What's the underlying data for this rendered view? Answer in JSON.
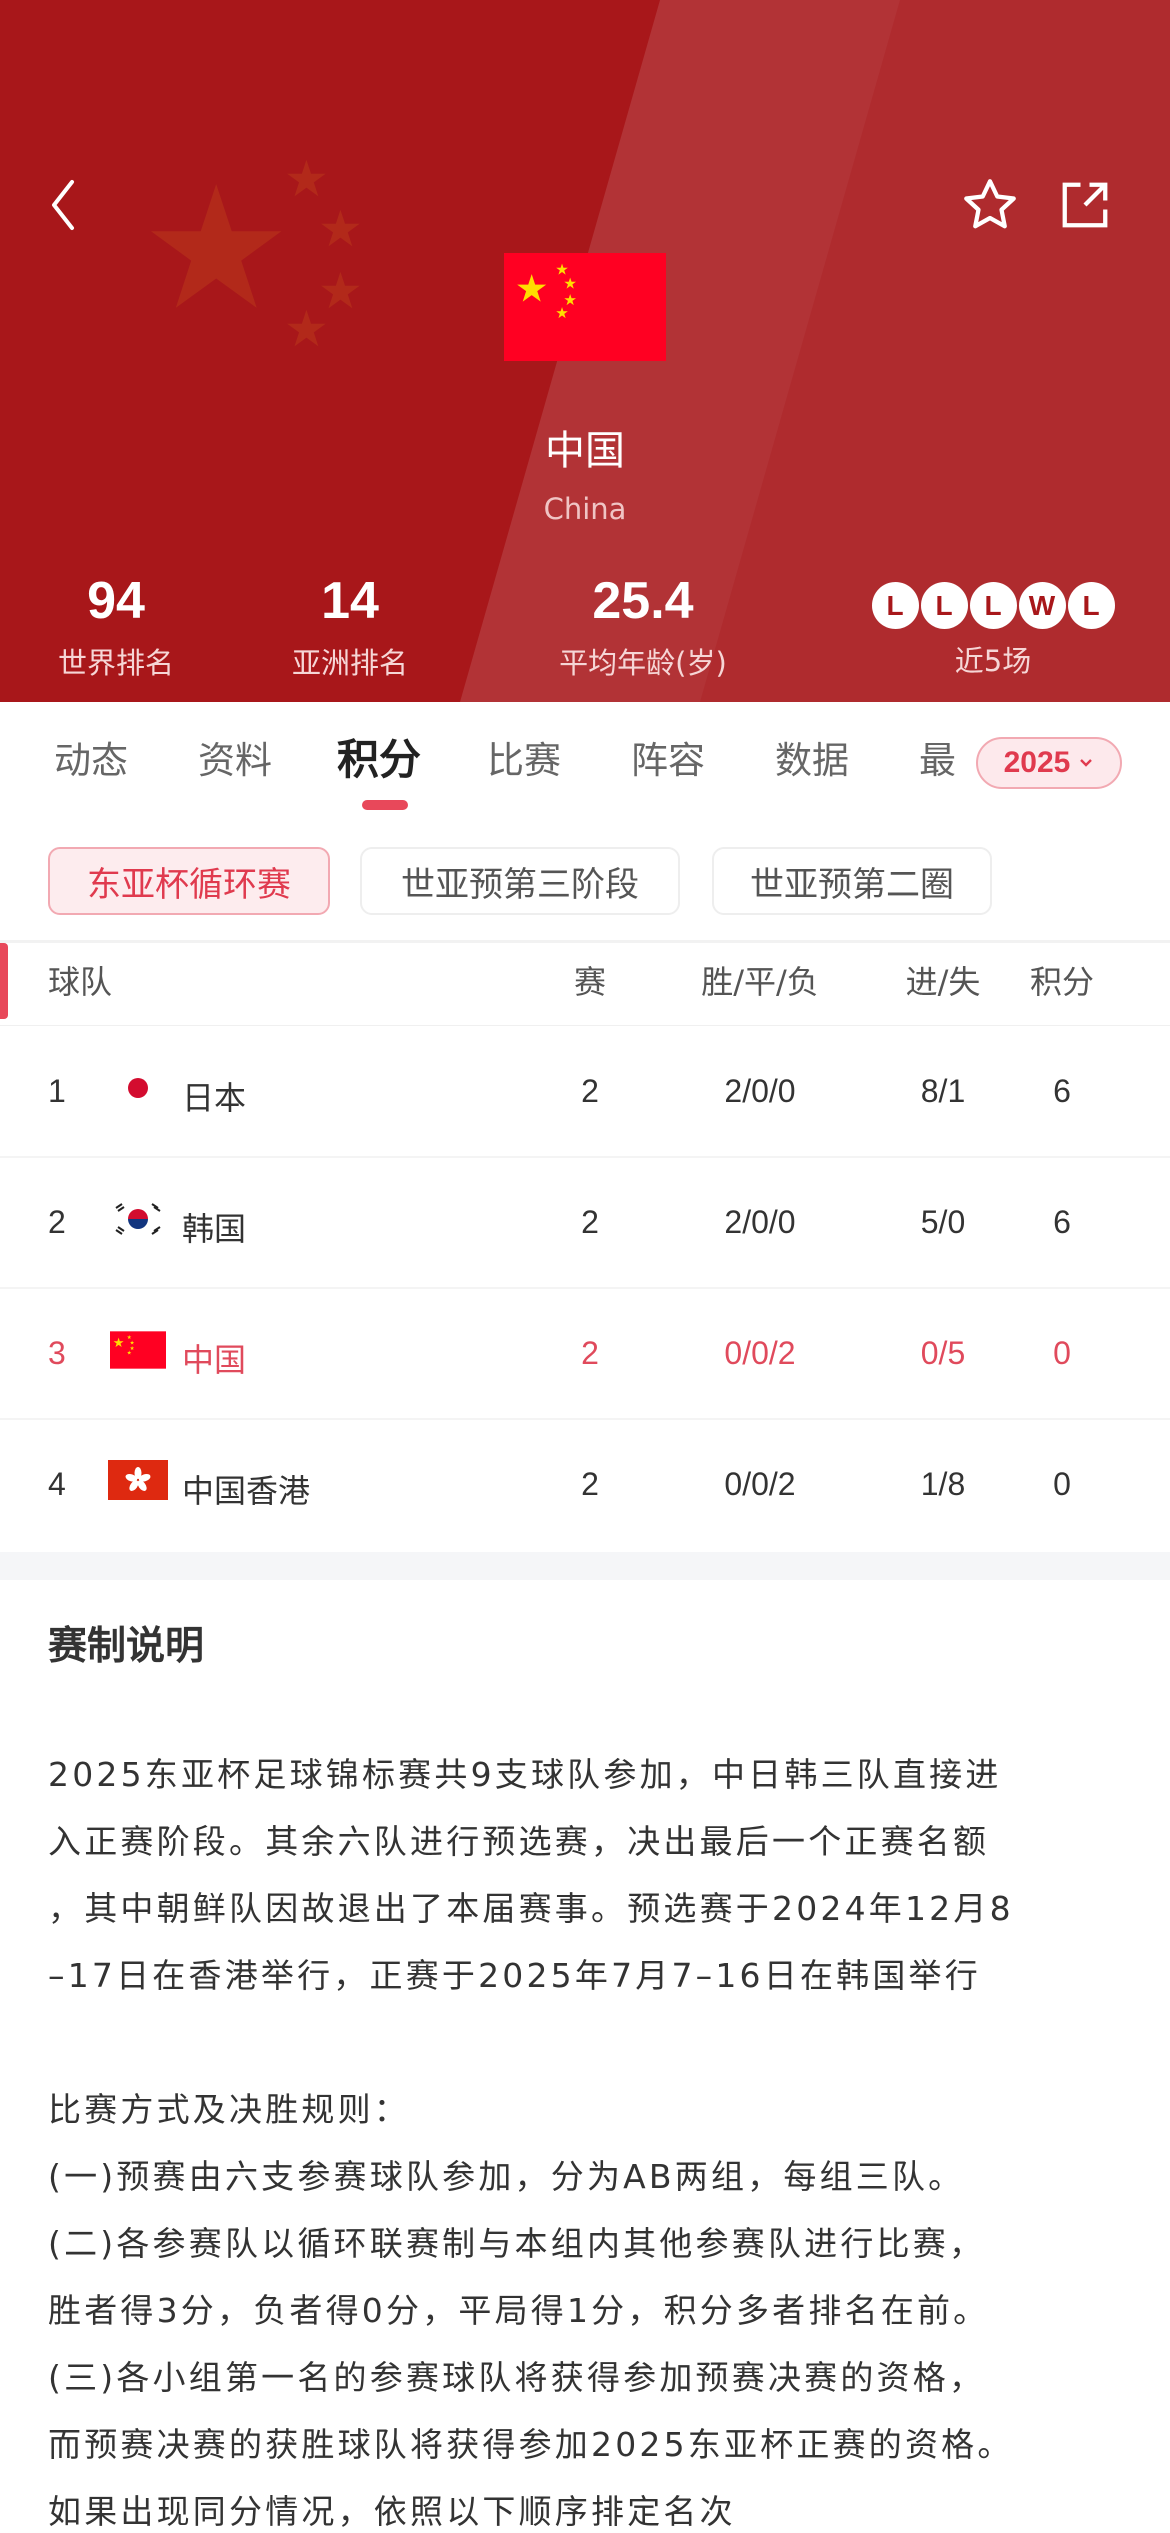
{
  "header": {
    "team_name": "中国",
    "team_name_en": "China",
    "icons": {
      "back": "chevron-left-icon",
      "favorite": "star-outline-icon",
      "share": "share-external-icon"
    },
    "stats": [
      {
        "value": "94",
        "label": "世界排名"
      },
      {
        "value": "14",
        "label": "亚洲排名"
      },
      {
        "value": "25.4",
        "label": "平均年龄(岁)"
      }
    ],
    "recent_form": {
      "results": [
        "L",
        "L",
        "L",
        "W",
        "L"
      ],
      "label": "近5场"
    }
  },
  "tabs": {
    "items": [
      "动态",
      "资料",
      "积分",
      "比赛",
      "阵容",
      "数据",
      "最"
    ],
    "active": "积分",
    "season": "2025"
  },
  "competitions": {
    "items": [
      "东亚杯循环赛",
      "世亚预第三阶段",
      "世亚预第二圈"
    ],
    "active": "东亚杯循环赛"
  },
  "standings": {
    "columns": [
      "球队",
      "赛",
      "胜/平/负",
      "进/失",
      "积分"
    ],
    "rows": [
      {
        "rank": "1",
        "team": "日本",
        "flag": "japan-flag",
        "played": "2",
        "wdl": "2/0/0",
        "goals": "8/1",
        "points": "6"
      },
      {
        "rank": "2",
        "team": "韩国",
        "flag": "south-korea-flag",
        "played": "2",
        "wdl": "2/0/0",
        "goals": "5/0",
        "points": "6"
      },
      {
        "rank": "3",
        "team": "中国",
        "flag": "china-flag",
        "played": "2",
        "wdl": "0/0/2",
        "goals": "0/5",
        "points": "0",
        "highlighted": true
      },
      {
        "rank": "4",
        "team": "中国香港",
        "flag": "hong-kong-flag",
        "played": "2",
        "wdl": "0/0/2",
        "goals": "1/8",
        "points": "0"
      }
    ],
    "highlight_color": "#e04a5c"
  },
  "rules": {
    "title": "赛制说明",
    "lines": [
      "2025东亚杯足球锦标赛共9支球队参加，中日韩三队直接进",
      "入正赛阶段。其余六队进行预选赛，决出最后一个正赛名额",
      "，其中朝鲜队因故退出了本届赛事。预选赛于2024年12月8",
      "–17日在香港举行，正赛于2025年7月7–16日在韩国举行",
      "",
      "比赛方式及决胜规则：",
      "(一)预赛由六支参赛球队参加，分为AB两组，每组三队。",
      "(二)各参赛队以循环联赛制与本组内其他参赛队进行比赛，",
      "胜者得3分，负者得0分，平局得1分，积分多者排名在前。",
      "(三)各小组第一名的参赛球队将获得参加预赛决赛的资格，",
      "而预赛决赛的获胜球队将获得参加2025东亚杯正赛的资格。",
      "如果出现同分情况，依照以下顺序排定名次"
    ]
  },
  "colors": {
    "header_bg": "#a8171a",
    "accent": "#e8485a"
  }
}
